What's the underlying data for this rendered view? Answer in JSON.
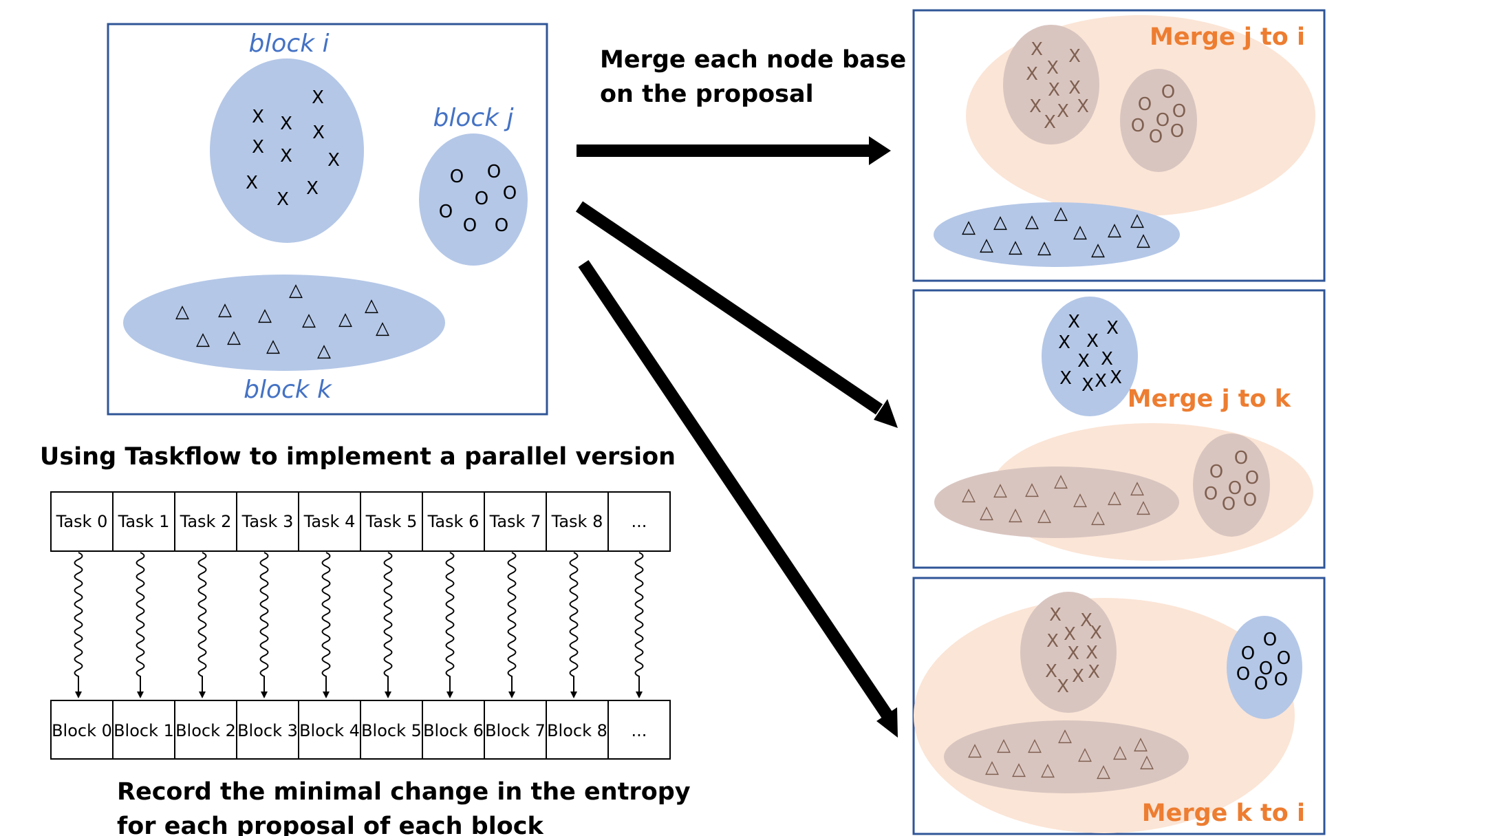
{
  "colors": {
    "block_fill": "#b4c7e7",
    "merge_fill": "#fbe5d6",
    "merged_inner_fill": "#d9c5c0",
    "frame_stroke": "#2f5597",
    "label_blue": "#4472c4",
    "label_orange": "#ed7d31",
    "merged_mark": "#7f6050"
  },
  "original": {
    "labels": {
      "block_i": "block i",
      "block_j": "block j",
      "block_k": "block k"
    },
    "marks": {
      "cross": "X",
      "circle": "O",
      "triangle": "△"
    }
  },
  "proposal_caption": [
    "Merge each node base",
    "on the proposal"
  ],
  "merge_panels": [
    {
      "label": "Merge j to i"
    },
    {
      "label": "Merge j to k"
    },
    {
      "label": "Merge k to i"
    }
  ],
  "taskflow": {
    "heading": "Using Taskflow to implement a parallel version",
    "tasks": [
      "Task 0",
      "Task 1",
      "Task 2",
      "Task 3",
      "Task 4",
      "Task 5",
      "Task 6",
      "Task 7",
      "Task 8",
      "..."
    ],
    "blocks": [
      "Block 0",
      "Block 1",
      "Block 2",
      "Block 3",
      "Block 4",
      "Block 5",
      "Block 6",
      "Block 7",
      "Block 8",
      "..."
    ],
    "footer": [
      "Record the minimal change in the entropy",
      "for each proposal of each block"
    ]
  }
}
